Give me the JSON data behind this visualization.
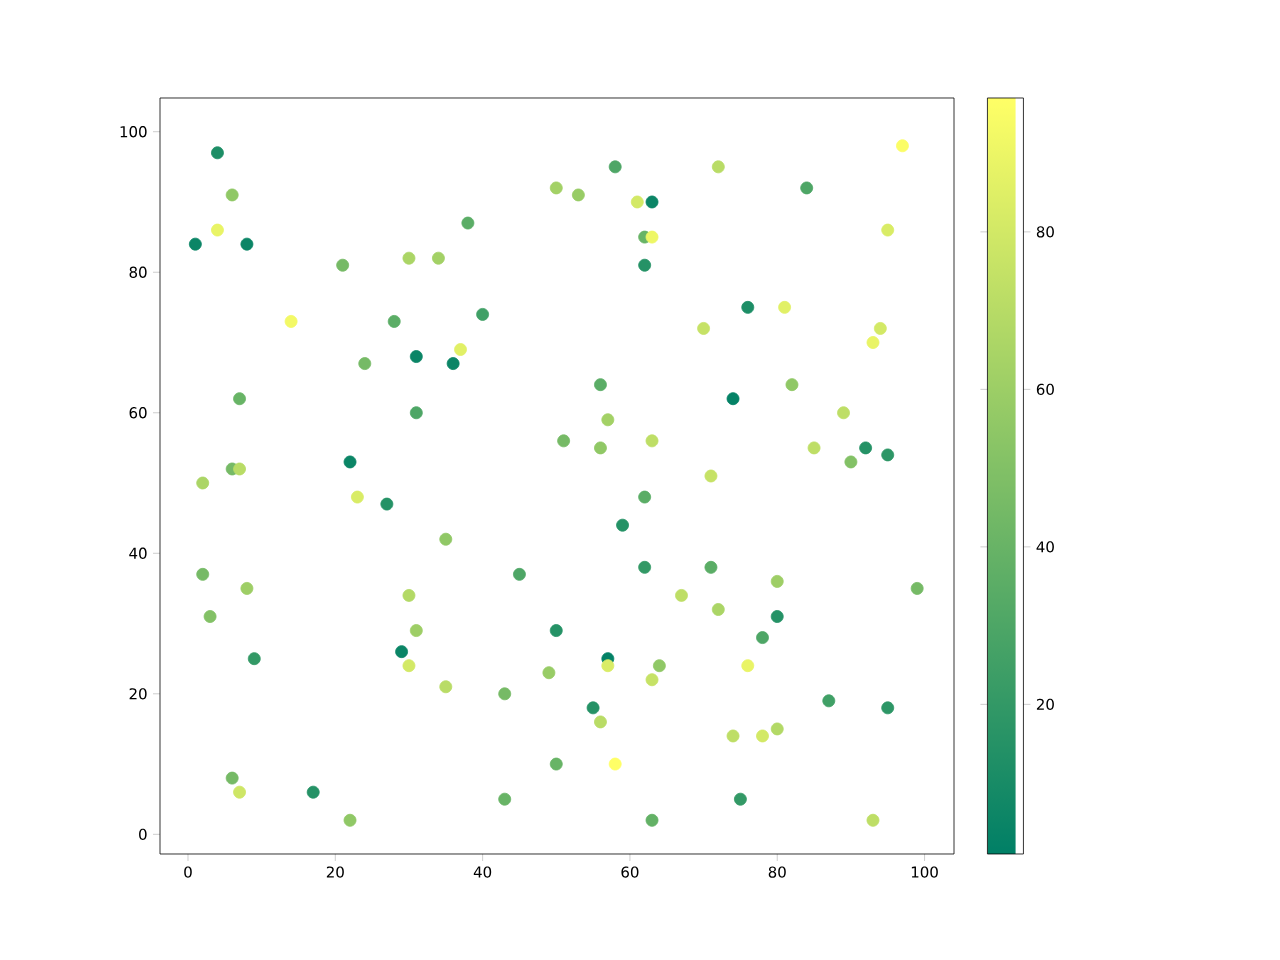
{
  "chart_data": {
    "type": "scatter",
    "marker": "circle",
    "x": [
      1,
      4,
      6,
      4,
      8,
      21,
      14,
      24,
      28,
      30,
      34,
      38,
      40,
      31,
      36,
      37,
      7,
      31,
      22,
      6,
      7,
      2,
      23,
      27,
      2,
      8,
      3,
      35,
      9,
      29,
      30,
      31,
      30,
      45,
      50,
      35,
      43,
      49,
      6,
      7,
      17,
      22,
      43,
      50,
      50,
      53,
      58,
      61,
      63,
      72,
      84,
      97,
      62,
      63,
      62,
      95,
      76,
      81,
      70,
      94,
      93,
      56,
      82,
      57,
      51,
      63,
      56,
      74,
      62,
      71,
      85,
      89,
      92,
      90,
      95,
      59,
      62,
      71,
      80,
      72,
      80,
      78,
      67,
      99,
      57,
      57,
      64,
      63,
      76,
      55,
      56,
      87,
      95,
      74,
      78,
      80,
      58,
      75,
      63,
      93
    ],
    "values": [
      84,
      97,
      91,
      86,
      84,
      81,
      73,
      67,
      73,
      82,
      82,
      87,
      74,
      68,
      67,
      69,
      62,
      60,
      53,
      52,
      52,
      50,
      48,
      47,
      37,
      35,
      31,
      42,
      25,
      26,
      34,
      29,
      24,
      37,
      29,
      21,
      20,
      23,
      8,
      6,
      6,
      2,
      5,
      10,
      92,
      91,
      95,
      90,
      90,
      95,
      92,
      98,
      85,
      85,
      81,
      86,
      75,
      75,
      72,
      72,
      70,
      64,
      64,
      59,
      56,
      56,
      55,
      62,
      48,
      51,
      55,
      60,
      55,
      53,
      54,
      44,
      38,
      38,
      36,
      32,
      31,
      28,
      34,
      35,
      25,
      24,
      24,
      22,
      24,
      18,
      16,
      19,
      18,
      14,
      14,
      15,
      10,
      5,
      2,
      2
    ],
    "cvalues": [
      5,
      12,
      55,
      88,
      5,
      45,
      92,
      45,
      35,
      65,
      62,
      35,
      25,
      5,
      5,
      85,
      40,
      30,
      5,
      45,
      70,
      65,
      82,
      15,
      45,
      60,
      50,
      55,
      20,
      5,
      68,
      60,
      80,
      30,
      15,
      70,
      45,
      58,
      45,
      78,
      15,
      55,
      40,
      40,
      62,
      58,
      30,
      80,
      5,
      70,
      30,
      95,
      40,
      90,
      15,
      82,
      12,
      85,
      75,
      80,
      88,
      35,
      55,
      62,
      45,
      72,
      55,
      3,
      35,
      75,
      72,
      72,
      15,
      50,
      18,
      15,
      20,
      35,
      60,
      65,
      15,
      30,
      72,
      45,
      2,
      82,
      55,
      75,
      88,
      15,
      70,
      25,
      18,
      72,
      80,
      68,
      97,
      20,
      38,
      72
    ],
    "xlim": [
      -3.8,
      104
    ],
    "ylim": [
      -2.8,
      104.8
    ],
    "xticks": [
      0,
      20,
      40,
      60,
      80,
      100
    ],
    "yticks": [
      0,
      20,
      40,
      60,
      80,
      100
    ],
    "clim": [
      1,
      97
    ],
    "cticks": [
      20,
      40,
      60,
      80
    ]
  }
}
